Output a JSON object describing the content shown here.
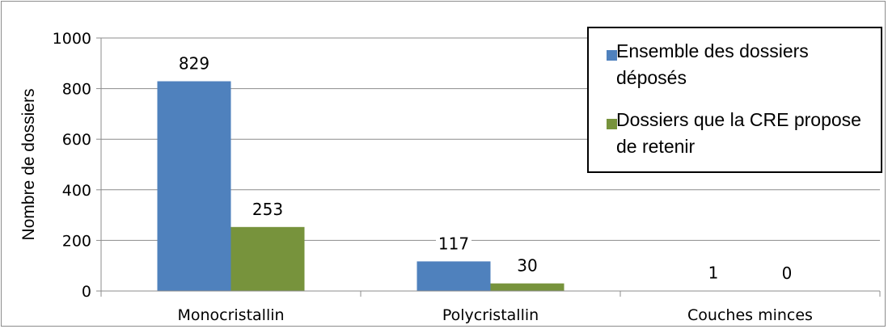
{
  "chart_data": {
    "type": "bar",
    "categories": [
      "Monocristallin",
      "Polycristallin",
      "Couches minces"
    ],
    "series": [
      {
        "name": "Ensemble des dossiers déposés",
        "values": [
          829,
          117,
          1
        ],
        "color": "#4f81bd"
      },
      {
        "name": "Dossiers que la CRE propose de retenir",
        "values": [
          253,
          30,
          0
        ],
        "color": "#77933c"
      }
    ],
    "data_labels": [
      [
        "829",
        "117",
        "1"
      ],
      [
        "253",
        "30",
        "0"
      ]
    ],
    "ylabel": "Nombre de dossiers",
    "xlabel": "",
    "ylim": [
      0,
      1000
    ],
    "yticks": [
      0,
      200,
      400,
      600,
      800,
      1000
    ],
    "grid": true,
    "legend_position": "top-right"
  }
}
